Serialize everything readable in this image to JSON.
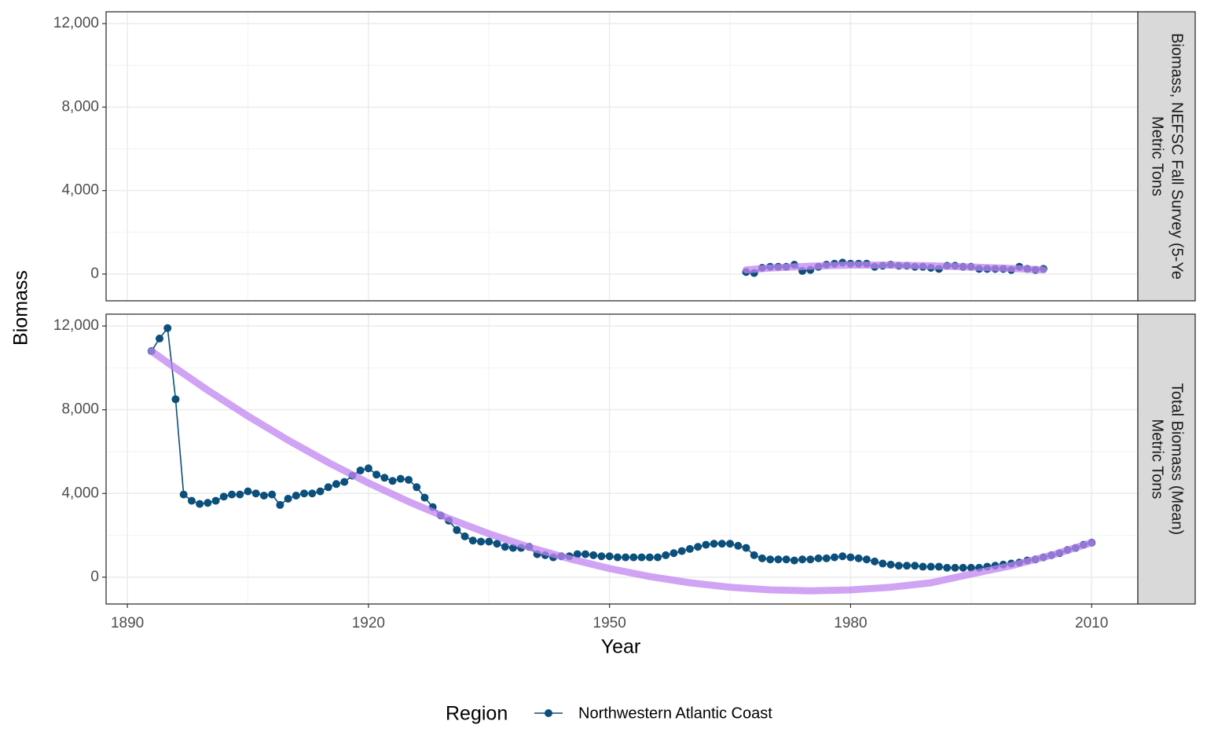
{
  "chart_data": [
    {
      "type": "line",
      "strip": [
        "Biomass, NEFSC Fall Survey (5-Ye",
        "Metric Tons"
      ],
      "x": [
        1967,
        1968,
        1969,
        1970,
        1971,
        1972,
        1973,
        1974,
        1975,
        1976,
        1977,
        1978,
        1979,
        1980,
        1981,
        1982,
        1983,
        1984,
        1985,
        1986,
        1987,
        1988,
        1989,
        1990,
        1991,
        1992,
        1993,
        1994,
        1995,
        1996,
        1997,
        1998,
        1999,
        2000,
        2001,
        2002,
        2003,
        2004
      ],
      "series": [
        {
          "name": "Northwestern Atlantic Coast",
          "color": "#0b4f7c",
          "values": [
            100,
            50,
            300,
            350,
            350,
            350,
            450,
            150,
            200,
            350,
            450,
            500,
            550,
            500,
            500,
            500,
            350,
            400,
            450,
            400,
            400,
            350,
            350,
            300,
            250,
            400,
            400,
            350,
            350,
            250,
            250,
            250,
            250,
            200,
            350,
            250,
            200,
            250
          ]
        }
      ],
      "trend": {
        "color": "#c084f2",
        "x": [
          1967,
          1970,
          1975,
          1980,
          1985,
          1990,
          1995,
          2000,
          2004
        ],
        "values": [
          200,
          290,
          380,
          430,
          430,
          400,
          340,
          270,
          200
        ]
      },
      "xlim": [
        1887.35,
        2015.75
      ],
      "xticks": [
        1890,
        1920,
        1950,
        1980,
        2010
      ],
      "xminor": [
        1905,
        1935,
        1965,
        1995
      ],
      "ylim": [
        -1280,
        12565
      ],
      "yticks": [
        0,
        {
          "value": 4000,
          "label": "4,000"
        },
        {
          "value": 8000,
          "label": "8,000"
        },
        {
          "value": 12000,
          "label": "12,000"
        }
      ],
      "yminor": [
        2000,
        6000,
        10000
      ]
    },
    {
      "type": "line",
      "strip": [
        "Total Biomass (Mean)",
        "Metric Tons"
      ],
      "x": [
        1893,
        1894,
        1895,
        1896,
        1897,
        1898,
        1899,
        1900,
        1901,
        1902,
        1903,
        1904,
        1905,
        1906,
        1907,
        1908,
        1909,
        1910,
        1911,
        1912,
        1913,
        1914,
        1915,
        1916,
        1917,
        1918,
        1919,
        1920,
        1921,
        1922,
        1923,
        1924,
        1925,
        1926,
        1927,
        1928,
        1929,
        1930,
        1931,
        1932,
        1933,
        1934,
        1935,
        1936,
        1937,
        1938,
        1939,
        1940,
        1941,
        1942,
        1943,
        1944,
        1945,
        1946,
        1947,
        1948,
        1949,
        1950,
        1951,
        1952,
        1953,
        1954,
        1955,
        1956,
        1957,
        1958,
        1959,
        1960,
        1961,
        1962,
        1963,
        1964,
        1965,
        1966,
        1967,
        1968,
        1969,
        1970,
        1971,
        1972,
        1973,
        1974,
        1975,
        1976,
        1977,
        1978,
        1979,
        1980,
        1981,
        1982,
        1983,
        1984,
        1985,
        1986,
        1987,
        1988,
        1989,
        1990,
        1991,
        1992,
        1993,
        1994,
        1995,
        1996,
        1997,
        1998,
        1999,
        2000,
        2001,
        2002,
        2003,
        2004,
        2005,
        2006,
        2007,
        2008,
        2009,
        2010
      ],
      "series": [
        {
          "name": "Northwestern Atlantic Coast",
          "color": "#0b4f7c",
          "values": [
            10800,
            11400,
            11900,
            8500,
            3950,
            3650,
            3500,
            3550,
            3650,
            3850,
            3950,
            3950,
            4100,
            4000,
            3900,
            3950,
            3450,
            3750,
            3900,
            4000,
            4000,
            4100,
            4300,
            4450,
            4550,
            4850,
            5100,
            5200,
            4900,
            4750,
            4600,
            4700,
            4650,
            4300,
            3800,
            3350,
            2950,
            2700,
            2250,
            1950,
            1750,
            1700,
            1700,
            1600,
            1450,
            1400,
            1400,
            1450,
            1100,
            1050,
            950,
            1000,
            1000,
            1100,
            1100,
            1050,
            1000,
            1000,
            950,
            950,
            950,
            950,
            950,
            950,
            1050,
            1150,
            1250,
            1350,
            1450,
            1550,
            1600,
            1600,
            1600,
            1500,
            1400,
            1050,
            900,
            850,
            850,
            850,
            800,
            850,
            850,
            900,
            900,
            950,
            1000,
            950,
            900,
            850,
            750,
            650,
            600,
            550,
            550,
            550,
            500,
            500,
            500,
            450,
            450,
            450,
            450,
            450,
            500,
            550,
            600,
            650,
            700,
            800,
            850,
            950,
            1050,
            1150,
            1300,
            1400,
            1550,
            1650
          ]
        }
      ],
      "trend": {
        "color": "#c084f2",
        "x": [
          1893,
          1895,
          1900,
          1905,
          1910,
          1915,
          1920,
          1925,
          1930,
          1935,
          1940,
          1945,
          1950,
          1955,
          1960,
          1965,
          1970,
          1975,
          1980,
          1985,
          1990,
          1995,
          2000,
          2005,
          2010
        ],
        "values": [
          10800,
          10250,
          8930,
          7695,
          6545,
          5480,
          4500,
          3610,
          2800,
          2075,
          1435,
          883,
          414,
          31,
          -267,
          -480,
          -607,
          -650,
          -607,
          -480,
          -267,
          150,
          550,
          1050,
          1650
        ]
      },
      "xlim": [
        1887.35,
        2015.75
      ],
      "xticks": [
        1890,
        1920,
        1950,
        1980,
        2010
      ],
      "xminor": [
        1905,
        1935,
        1965,
        1995
      ],
      "ylim": [
        -1280,
        12565
      ],
      "yticks": [
        0,
        {
          "value": 4000,
          "label": "4,000"
        },
        {
          "value": 8000,
          "label": "8,000"
        },
        {
          "value": 12000,
          "label": "12,000"
        }
      ],
      "yminor": [
        2000,
        6000,
        10000
      ]
    }
  ],
  "x_label": "Year",
  "y_label": "Biomass",
  "legend_title": "Region"
}
